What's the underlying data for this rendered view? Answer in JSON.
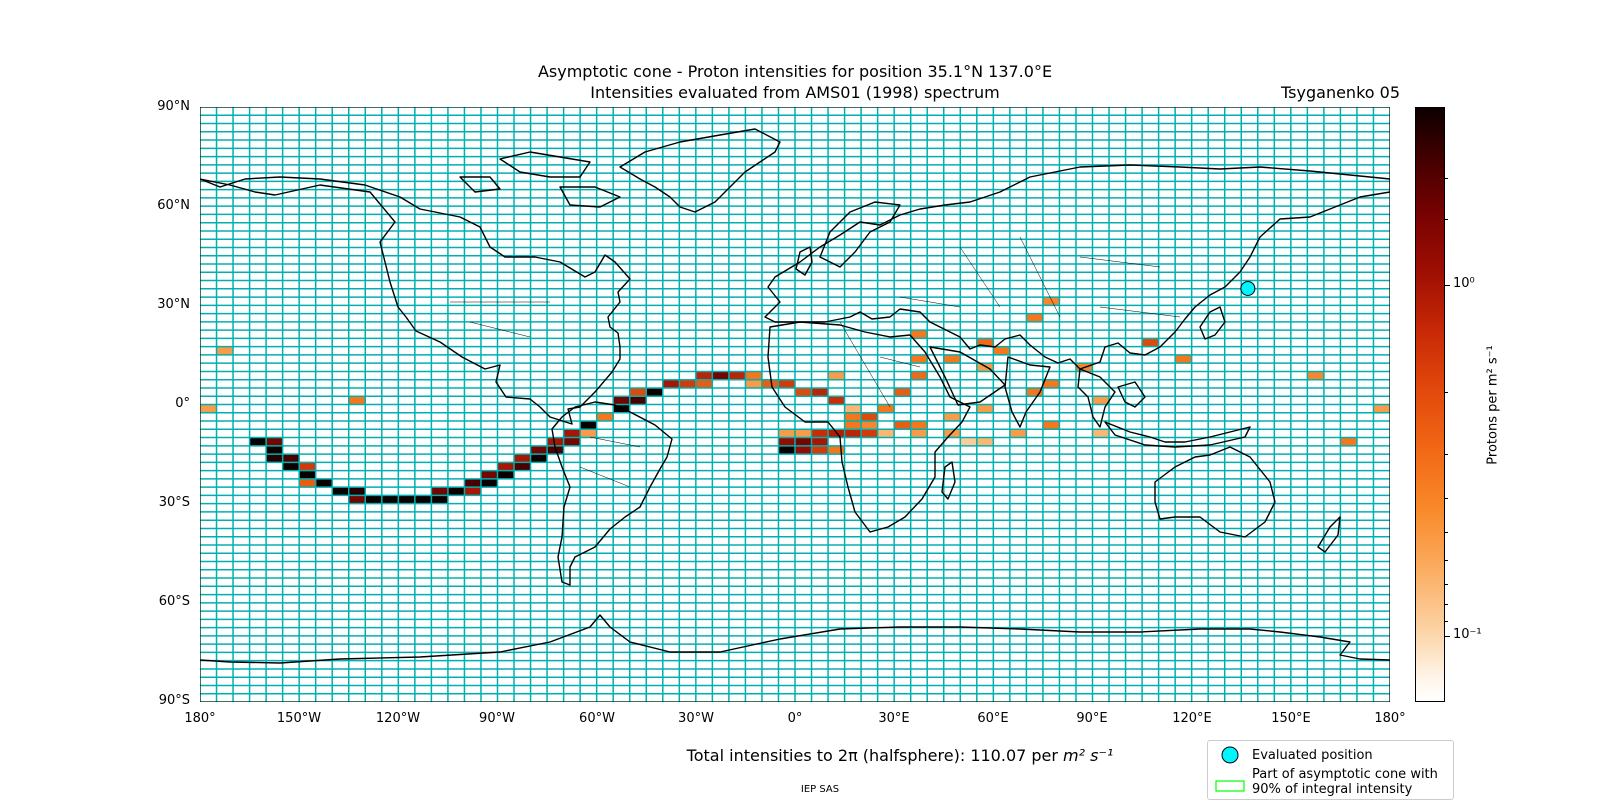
{
  "title": {
    "line1": "Asymptotic cone - Proton intensities for position 35.1°N 137.0°E",
    "line2": "Intensities evaluated from AMS01 (1998) spectrum",
    "model": "Tsyganenko 05"
  },
  "axes": {
    "lat_labels": [
      "90°N",
      "60°N",
      "30°N",
      "0°",
      "30°S",
      "60°S",
      "90°S"
    ],
    "lon_labels": [
      "180°",
      "150°W",
      "120°W",
      "90°W",
      "60°W",
      "30°W",
      "0°",
      "30°E",
      "60°E",
      "90°E",
      "120°E",
      "150°E",
      "180°"
    ]
  },
  "colorbar": {
    "label": "Protons per m² s⁻¹",
    "tick_labels": [
      "10⁰",
      "10⁻¹"
    ],
    "scale": "log",
    "range": [
      0.07,
      3.0
    ]
  },
  "total_intensity": {
    "prefix": "Total intensities to 2π (halfsphere): 110.07 per ",
    "unit": "m² s⁻¹"
  },
  "credit": "IEP SAS",
  "legend": {
    "evaluated_position": "Evaluated position",
    "cone_line1": "Part of asymptotic cone with",
    "cone_line2": "90% of integral intensity"
  },
  "colors": {
    "grid": "#00b0b0",
    "marker_fill": "#00f5ff",
    "cone_outline": "#00ff00",
    "coast": "#000000"
  },
  "map_data": {
    "cell_size_deg": [
      5,
      2.5
    ],
    "evaluated_position": {
      "lat": 35.1,
      "lon": 137.0
    },
    "cells": [
      [
        -162.5,
        -11.25,
        3.0
      ],
      [
        -157.5,
        -11.25,
        1.5
      ],
      [
        -157.5,
        -13.75,
        3.0
      ],
      [
        -157.5,
        -16.25,
        2.5
      ],
      [
        -152.5,
        -16.25,
        2.0
      ],
      [
        -152.5,
        -18.75,
        3.0
      ],
      [
        -147.5,
        -18.75,
        0.6
      ],
      [
        -147.5,
        -21.25,
        3.0
      ],
      [
        -147.5,
        -23.75,
        0.4
      ],
      [
        -142.5,
        -23.75,
        3.0
      ],
      [
        -137.5,
        -26.25,
        3.0
      ],
      [
        -132.5,
        -26.25,
        2.5
      ],
      [
        -132.5,
        -28.75,
        1.5
      ],
      [
        -127.5,
        -28.75,
        3.0
      ],
      [
        -122.5,
        -28.75,
        3.0
      ],
      [
        -117.5,
        -28.75,
        3.0
      ],
      [
        -112.5,
        -28.75,
        3.0
      ],
      [
        -107.5,
        -28.75,
        3.0
      ],
      [
        -107.5,
        -26.25,
        1.5
      ],
      [
        -102.5,
        -26.25,
        3.0
      ],
      [
        -97.5,
        -26.25,
        1.0
      ],
      [
        -97.5,
        -23.75,
        2.0
      ],
      [
        -92.5,
        -23.75,
        3.0
      ],
      [
        -92.5,
        -21.25,
        1.5
      ],
      [
        -87.5,
        -21.25,
        3.0
      ],
      [
        -87.5,
        -18.75,
        1.0
      ],
      [
        -82.5,
        -18.75,
        2.0
      ],
      [
        -82.5,
        -16.25,
        1.0
      ],
      [
        -77.5,
        -16.25,
        3.0
      ],
      [
        -77.5,
        -13.75,
        1.5
      ],
      [
        -72.5,
        -13.75,
        2.0
      ],
      [
        -72.5,
        -11.25,
        1.0
      ],
      [
        -67.5,
        -11.25,
        1.5
      ],
      [
        -67.5,
        -8.75,
        1.0
      ],
      [
        -62.5,
        -8.75,
        0.2
      ],
      [
        -62.5,
        -6.25,
        3.0
      ],
      [
        -57.5,
        -3.75,
        0.3
      ],
      [
        -52.5,
        -1.25,
        3.0
      ],
      [
        -52.5,
        1.25,
        1.5
      ],
      [
        -47.5,
        1.25,
        2.0
      ],
      [
        -47.5,
        3.75,
        0.5
      ],
      [
        -42.5,
        3.75,
        3.0
      ],
      [
        -37.5,
        6.25,
        1.0
      ],
      [
        -32.5,
        6.25,
        0.6
      ],
      [
        -27.5,
        8.75,
        0.8
      ],
      [
        -27.5,
        6.25,
        0.4
      ],
      [
        -22.5,
        8.75,
        1.5
      ],
      [
        -17.5,
        8.75,
        0.8
      ],
      [
        -12.5,
        8.75,
        0.3
      ],
      [
        -7.5,
        6.25,
        0.4
      ],
      [
        -2.5,
        6.25,
        0.6
      ],
      [
        2.5,
        3.75,
        0.5
      ],
      [
        7.5,
        3.75,
        0.8
      ],
      [
        12.5,
        1.25,
        0.7
      ],
      [
        17.5,
        -1.25,
        0.15
      ],
      [
        -2.5,
        -8.75,
        0.2
      ],
      [
        2.5,
        -8.75,
        0.2
      ],
      [
        7.5,
        -8.75,
        0.7
      ],
      [
        12.5,
        -8.75,
        0.9
      ],
      [
        17.5,
        -8.75,
        0.8
      ],
      [
        22.5,
        -8.75,
        0.6
      ],
      [
        -2.5,
        -11.25,
        1.2
      ],
      [
        2.5,
        -11.25,
        1.5
      ],
      [
        7.5,
        -11.25,
        1.0
      ],
      [
        -2.5,
        -13.75,
        3.0
      ],
      [
        2.5,
        -13.75,
        1.2
      ],
      [
        7.5,
        -13.75,
        0.6
      ],
      [
        12.5,
        -13.75,
        0.3
      ],
      [
        22.5,
        -3.75,
        0.5
      ],
      [
        27.5,
        -1.25,
        0.3
      ],
      [
        32.5,
        -6.25,
        0.4
      ],
      [
        37.5,
        -6.25,
        0.3
      ],
      [
        22.5,
        -6.25,
        0.25
      ],
      [
        27.5,
        -8.75,
        0.15
      ],
      [
        37.5,
        -8.75,
        0.2
      ],
      [
        47.5,
        -8.75,
        0.2
      ],
      [
        52.5,
        -11.25,
        0.12
      ],
      [
        57.5,
        -11.25,
        0.15
      ],
      [
        67.5,
        -8.75,
        0.2
      ],
      [
        77.5,
        -6.25,
        0.3
      ],
      [
        92.5,
        -8.75,
        0.15
      ],
      [
        47.5,
        -3.75,
        0.2
      ],
      [
        57.5,
        -1.25,
        0.2
      ],
      [
        72.5,
        3.75,
        0.3
      ],
      [
        77.5,
        6.25,
        0.3
      ],
      [
        92.5,
        1.25,
        0.2
      ],
      [
        87.5,
        11.25,
        0.25
      ],
      [
        62.5,
        16.25,
        0.3
      ],
      [
        57.5,
        18.75,
        0.35
      ],
      [
        57.5,
        11.25,
        0.2
      ],
      [
        37.5,
        8.75,
        0.35
      ],
      [
        37.5,
        13.75,
        0.3
      ],
      [
        47.5,
        13.75,
        0.3
      ],
      [
        37.5,
        21.25,
        0.3
      ],
      [
        72.5,
        26.25,
        0.3
      ],
      [
        77.5,
        31.25,
        0.25
      ],
      [
        107.5,
        18.75,
        0.5
      ],
      [
        117.5,
        13.75,
        0.3
      ],
      [
        157.5,
        8.75,
        0.25
      ],
      [
        167.5,
        -11.25,
        0.3
      ],
      [
        177.5,
        -1.25,
        0.2
      ],
      [
        -177.5,
        -1.25,
        0.2
      ],
      [
        -172.5,
        16.25,
        0.2
      ],
      [
        -132.5,
        1.25,
        0.3
      ],
      [
        12.5,
        8.75,
        0.2
      ],
      [
        17.5,
        -3.75,
        0.3
      ],
      [
        17.5,
        -6.25,
        0.3
      ],
      [
        32.5,
        3.75,
        0.4
      ],
      [
        -12.5,
        6.25,
        0.2
      ]
    ]
  }
}
